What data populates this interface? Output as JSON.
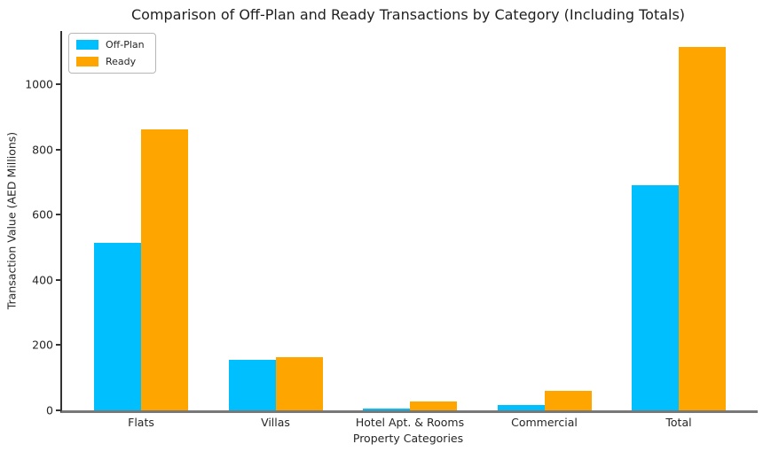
{
  "chart_data": {
    "type": "bar",
    "title": "Comparison of Off-Plan and Ready Transactions by Category (Including Totals)",
    "xlabel": "Property Categories",
    "ylabel": "Transaction Value (AED Millions)",
    "categories": [
      "Flats",
      "Villas",
      "Hotel Apt. & Rooms",
      "Commercial",
      "Total"
    ],
    "series": [
      {
        "name": "Off-Plan",
        "color": "#00BFFF",
        "values": [
          514,
          154,
          6,
          15,
          689
        ]
      },
      {
        "name": "Ready",
        "color": "#FFA500",
        "values": [
          862,
          164,
          27,
          61,
          1114
        ]
      }
    ],
    "ylim": [
      0,
      1163
    ],
    "yticks": [
      0,
      200,
      400,
      600,
      800,
      1000
    ],
    "grid": false,
    "legend_position": "upper-left",
    "background_color": "#ffffff",
    "text_color": "#262626"
  }
}
